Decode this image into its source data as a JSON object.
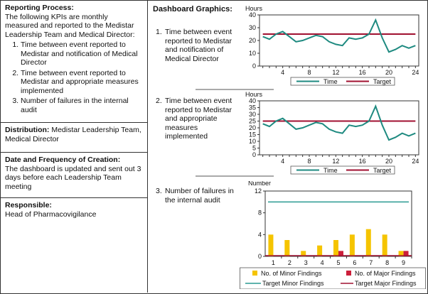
{
  "left": {
    "reporting": {
      "heading": "Reporting Process:",
      "intro": "The following KPIs are monthly measured and reported to the Medistar Leadership Team and Medical Director:",
      "items": [
        "Time between event reported to Medistar and notification of Medical Director",
        "Time between event reported to Medistar and appropriate measures implemented",
        "Number of failures in the internal audit"
      ]
    },
    "distribution": {
      "heading": "Distribution:",
      "text": " Medistar Leadership Team, Medical Director"
    },
    "frequency": {
      "heading": "Date and Frequency of Creation:",
      "text": "The dashboard is updated and sent out 3 days before each Leadership Team meeting"
    },
    "responsible": {
      "heading": "Responsible:",
      "text": "Head of Pharmacovigilance"
    }
  },
  "right": {
    "title": "Dashboard Graphics:",
    "items": [
      {
        "num": "1.",
        "text": "Time between event reported to Medistar and notification of Medical Director"
      },
      {
        "num": "2.",
        "text": "Time between event reported to Medistar and appropriate measures implemented"
      },
      {
        "num": "3.",
        "text": "Number of failures in the internal audit"
      }
    ]
  },
  "chart_data": [
    {
      "type": "line",
      "ylabel": "Hours",
      "ylim": [
        0,
        40
      ],
      "yticks": [
        0,
        10,
        20,
        30,
        40
      ],
      "xticks": [
        4,
        8,
        12,
        16,
        20,
        24
      ],
      "x": [
        1,
        2,
        3,
        4,
        5,
        6,
        7,
        8,
        9,
        10,
        11,
        12,
        13,
        14,
        15,
        16,
        17,
        18,
        19,
        20,
        21,
        22,
        23,
        24
      ],
      "series": [
        {
          "name": "Time",
          "color": "#1e8a80",
          "values": [
            23,
            21,
            25,
            27,
            23,
            19,
            20,
            22,
            24,
            23,
            19,
            17,
            16,
            22,
            21,
            22,
            25,
            36,
            22,
            11,
            13,
            16,
            14,
            16
          ]
        },
        {
          "name": "Target",
          "color": "#a01030",
          "values": [
            25,
            25,
            25,
            25,
            25,
            25,
            25,
            25,
            25,
            25,
            25,
            25,
            25,
            25,
            25,
            25,
            25,
            25,
            25,
            25,
            25,
            25,
            25,
            25
          ]
        }
      ],
      "legend": "bottom"
    },
    {
      "type": "line",
      "ylabel": "Hours",
      "ylim": [
        0,
        40
      ],
      "yticks": [
        0,
        5,
        10,
        15,
        20,
        25,
        30,
        35,
        40
      ],
      "xticks": [
        4,
        8,
        12,
        16,
        20,
        24
      ],
      "x": [
        1,
        2,
        3,
        4,
        5,
        6,
        7,
        8,
        9,
        10,
        11,
        12,
        13,
        14,
        15,
        16,
        17,
        18,
        19,
        20,
        21,
        22,
        23,
        24
      ],
      "series": [
        {
          "name": "Time",
          "color": "#1e8a80",
          "values": [
            23,
            21,
            25,
            27,
            23,
            19,
            20,
            22,
            24,
            23,
            19,
            17,
            16,
            22,
            21,
            22,
            25,
            36,
            22,
            11,
            13,
            16,
            14,
            16
          ]
        },
        {
          "name": "Target",
          "color": "#a01030",
          "values": [
            25,
            25,
            25,
            25,
            25,
            25,
            25,
            25,
            25,
            25,
            25,
            25,
            25,
            25,
            25,
            25,
            25,
            25,
            25,
            25,
            25,
            25,
            25,
            25
          ]
        }
      ],
      "legend": "bottom"
    },
    {
      "type": "bar",
      "ylabel": "Number",
      "ylim": [
        0,
        12
      ],
      "yticks": [
        0,
        4,
        8,
        12
      ],
      "categories": [
        "1",
        "2",
        "3",
        "4",
        "5",
        "6",
        "7",
        "8",
        "9"
      ],
      "series": [
        {
          "name": "No. of Minor Findings",
          "color": "#f5c400",
          "values": [
            4,
            3,
            1,
            2,
            3,
            4,
            5,
            4,
            1
          ]
        },
        {
          "name": "No. of Major Findings",
          "color": "#cc1f3a",
          "values": [
            0,
            0,
            0,
            0,
            1,
            0,
            0,
            0,
            1
          ]
        },
        {
          "name": "Target Minor Findings",
          "color": "#2a9a92",
          "values": [
            10,
            10,
            10,
            10,
            10,
            10,
            10,
            10,
            10
          ]
        },
        {
          "name": "Target Major Findings",
          "color": "#a01030",
          "values": [
            0,
            0,
            0,
            0,
            0,
            0,
            0,
            0,
            0
          ]
        }
      ],
      "legend": "bottom"
    }
  ]
}
